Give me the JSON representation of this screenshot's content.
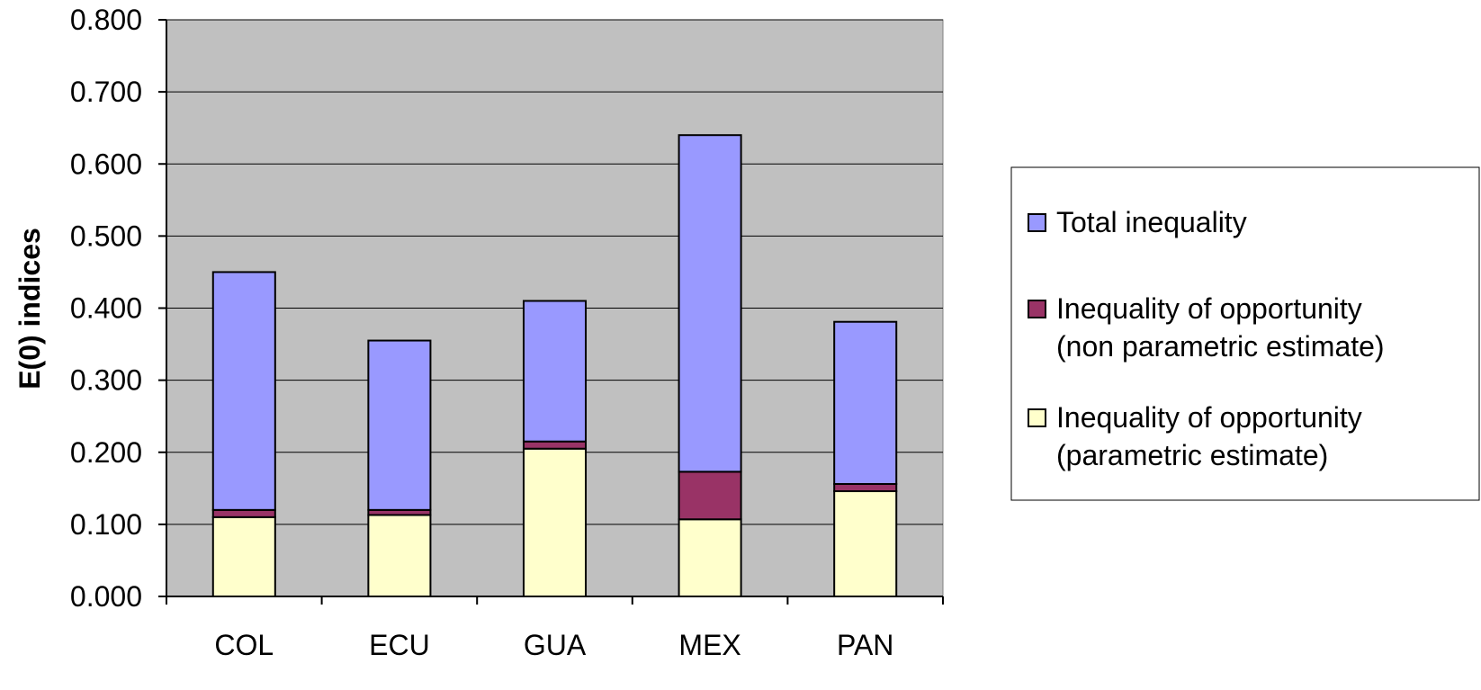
{
  "chart_data": {
    "type": "bar",
    "stacked": true,
    "categories": [
      "COL",
      "ECU",
      "GUA",
      "MEX",
      "PAN"
    ],
    "ylabel": "E(0) indices",
    "ylim": [
      0,
      0.8
    ],
    "yticks": [
      "0.000",
      "0.100",
      "0.200",
      "0.300",
      "0.400",
      "0.500",
      "0.600",
      "0.700",
      "0.800"
    ],
    "grid": true,
    "legend_position": "right",
    "series": [
      {
        "name": "Inequality of opportunity (parametric estimate)",
        "color": "#FFFFCC",
        "values": [
          0.11,
          0.113,
          0.205,
          0.107,
          0.146
        ]
      },
      {
        "name": "Inequality of opportunity (non parametric estimate)",
        "color": "#993366",
        "values": [
          0.01,
          0.007,
          0.01,
          0.066,
          0.01
        ]
      },
      {
        "name": "Total inequality",
        "color": "#9999FF",
        "values": [
          0.33,
          0.235,
          0.195,
          0.467,
          0.225
        ]
      }
    ],
    "totals": [
      0.45,
      0.355,
      0.41,
      0.64,
      0.381
    ],
    "legend": [
      {
        "lines": [
          "Total inequality"
        ],
        "color": "#9999FF"
      },
      {
        "lines": [
          "Inequality of opportunity",
          "(non parametric estimate)"
        ],
        "color": "#993366"
      },
      {
        "lines": [
          "Inequality of opportunity",
          "(parametric estimate)"
        ],
        "color": "#FFFFCC"
      }
    ],
    "plot_background": "#C0C0C0"
  }
}
